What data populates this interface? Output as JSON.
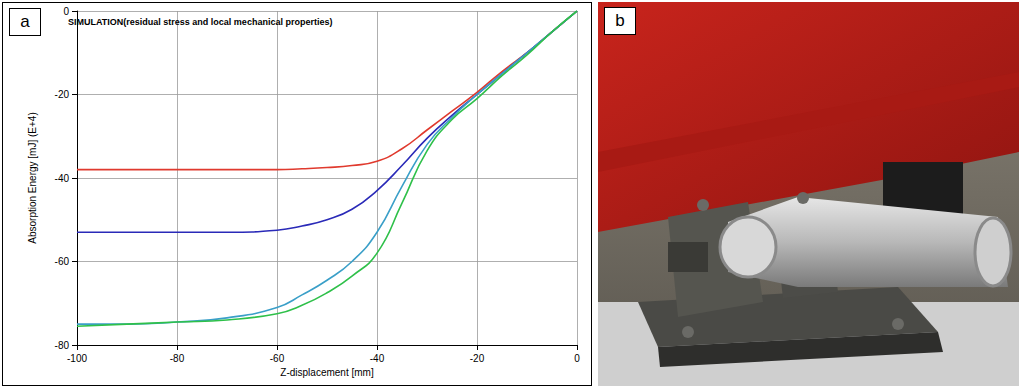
{
  "chart_data": {
    "type": "line",
    "title": "SIMULATION(residual stress and local mechanical properties)",
    "x_label": "Z-displacement [mm]",
    "y_label": "Absorption Energy [mJ] (E+4)",
    "x": [
      -100,
      -90,
      -80,
      -70,
      -60,
      -55,
      -50,
      -45,
      -40,
      -35,
      -30,
      -25,
      -20,
      -15,
      -10,
      -5,
      0
    ],
    "series": [
      {
        "color": "#e03a2e",
        "values": [
          -38,
          -38,
          -38,
          -38,
          -38,
          -37.8,
          -37.5,
          -37,
          -36,
          -33,
          -28.5,
          -24,
          -19.5,
          -14.5,
          -10,
          -5,
          0
        ]
      },
      {
        "color": "#2a2ab8",
        "values": [
          -53,
          -53,
          -53,
          -53,
          -52.5,
          -51.5,
          -50,
          -47.5,
          -43,
          -37,
          -30.5,
          -25,
          -20,
          -15,
          -10,
          -5,
          0
        ]
      },
      {
        "color": "#3a9fc8",
        "values": [
          -75,
          -75,
          -74.5,
          -73.5,
          -71,
          -68,
          -64.5,
          -60,
          -53,
          -42,
          -32,
          -25.5,
          -20,
          -15,
          -10,
          -5,
          0
        ]
      },
      {
        "color": "#2fc04a",
        "values": [
          -75.5,
          -75,
          -74.5,
          -74,
          -72.5,
          -70.5,
          -67.5,
          -63.5,
          -58,
          -46,
          -33.5,
          -26,
          -21,
          -15.5,
          -10.5,
          -5,
          0
        ]
      }
    ],
    "xlim": [
      -100,
      0
    ],
    "xticks": [
      -100,
      -80,
      -60,
      -40,
      -20,
      0
    ],
    "ylim": [
      -80,
      0
    ],
    "yticks": [
      -80,
      -60,
      -40,
      -20,
      0
    ],
    "grid": true,
    "marker": "none",
    "line_style": "solid"
  },
  "panel_labels": [
    "a",
    "b"
  ]
}
